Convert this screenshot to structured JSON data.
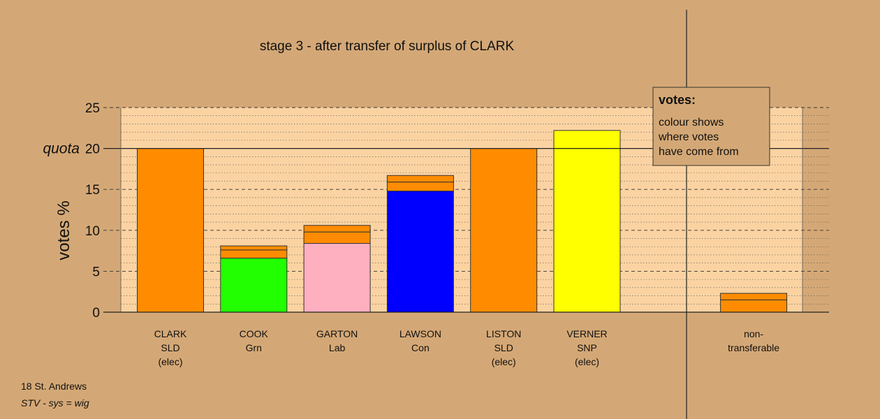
{
  "chart_data": {
    "type": "bar",
    "title": "stage 3 - after transfer of surplus of CLARK",
    "ylabel": "votes %",
    "ylim": [
      0,
      25
    ],
    "yticks": [
      0,
      5,
      10,
      15,
      20,
      25
    ],
    "quota_label": "quota",
    "quota": 20,
    "grid": true,
    "stacked": true,
    "categories": [
      {
        "name": "CLARK",
        "party": "SLD",
        "status": "(elec)"
      },
      {
        "name": "COOK",
        "party": "Grn",
        "status": ""
      },
      {
        "name": "GARTON",
        "party": "Lab",
        "status": ""
      },
      {
        "name": "LAWSON",
        "party": "Con",
        "status": ""
      },
      {
        "name": "LISTON",
        "party": "SLD",
        "status": "(elec)"
      },
      {
        "name": "VERNER",
        "party": "SNP",
        "status": "(elec)"
      },
      {
        "name": "",
        "party": "",
        "status": ""
      },
      {
        "name": "non-",
        "party": "transferable",
        "status": ""
      }
    ],
    "bars": [
      {
        "segments": [
          {
            "value": 20.0,
            "color": "#ff8c00"
          }
        ]
      },
      {
        "segments": [
          {
            "value": 6.6,
            "color": "#22ff00"
          },
          {
            "value": 1.0,
            "color": "#ff8c00"
          },
          {
            "value": 0.5,
            "color": "#ff8c00"
          }
        ]
      },
      {
        "segments": [
          {
            "value": 8.4,
            "color": "#ffb0c0"
          },
          {
            "value": 1.4,
            "color": "#ff8c00"
          },
          {
            "value": 0.8,
            "color": "#ff8c00"
          }
        ]
      },
      {
        "segments": [
          {
            "value": 14.8,
            "color": "#0000ff"
          },
          {
            "value": 1.1,
            "color": "#ff8c00"
          },
          {
            "value": 0.8,
            "color": "#ff8c00"
          }
        ]
      },
      {
        "segments": [
          {
            "value": 20.0,
            "color": "#ff8c00"
          }
        ]
      },
      {
        "segments": [
          {
            "value": 22.2,
            "color": "#ffff00"
          }
        ]
      },
      {
        "segments": []
      },
      {
        "segments": [
          {
            "value": 1.5,
            "color": "#ff8c00"
          },
          {
            "value": 0.8,
            "color": "#ff8c00"
          }
        ]
      }
    ],
    "legend": {
      "title": "votes:",
      "lines": [
        "colour shows",
        "where votes",
        "have come from"
      ],
      "position": "top-right"
    }
  },
  "footer": {
    "line1": "18 St. Andrews",
    "line2": "STV - sys = wig"
  },
  "colors": {
    "background": "#d4a876",
    "plot_background": "#fbd3a2"
  }
}
